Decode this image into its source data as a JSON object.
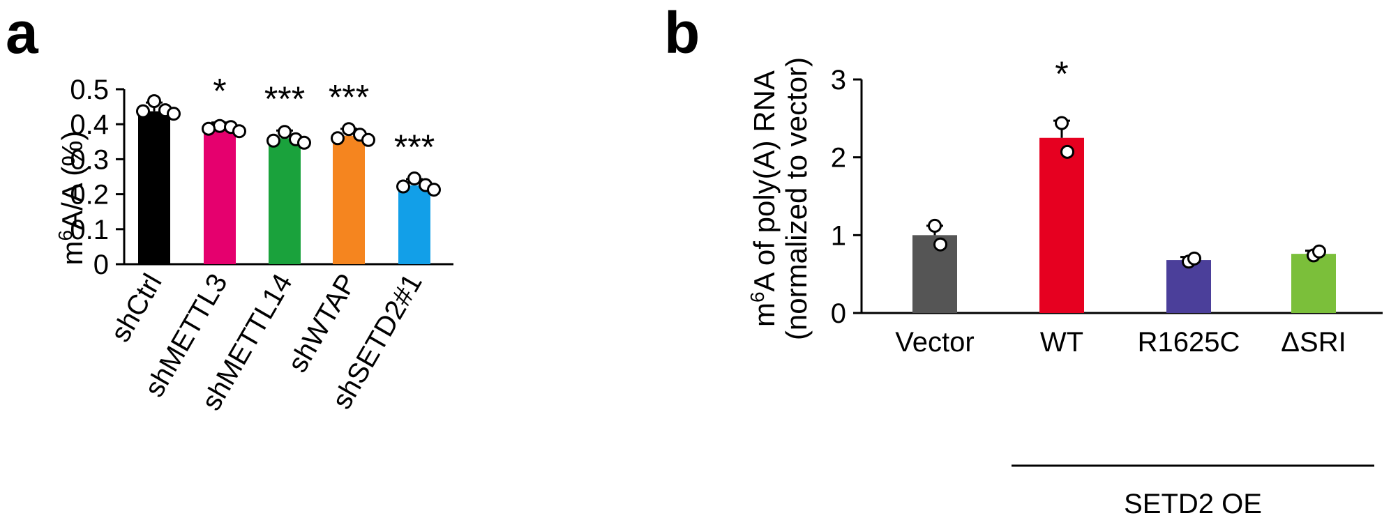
{
  "chart_data": [
    {
      "panel": "a",
      "type": "bar",
      "categories": [
        "shCtrl",
        "shMETTL3",
        "shMETTL14",
        "shWTAP",
        "shSETD2#1"
      ],
      "values": [
        0.437,
        0.39,
        0.36,
        0.367,
        0.225
      ],
      "error": [
        0.025,
        0.015,
        0.022,
        0.02,
        0.018
      ],
      "points": [
        [
          0.466,
          0.437,
          0.44,
          0.43
        ],
        [
          0.395,
          0.387,
          0.392,
          0.38
        ],
        [
          0.378,
          0.353,
          0.357,
          0.347
        ],
        [
          0.386,
          0.36,
          0.37,
          0.355
        ],
        [
          0.245,
          0.222,
          0.226,
          0.213
        ]
      ],
      "significance": [
        "",
        "*",
        "***",
        "***",
        "***"
      ],
      "colors": [
        "#000000",
        "#e5006e",
        "#1aa23c",
        "#f5851f",
        "#129fe8"
      ],
      "ylabel_base": "m",
      "ylabel_sup": "6",
      "ylabel_rest": "A/A (%)",
      "yticks": [
        "0",
        "0.1",
        "0.2",
        "0.3",
        "0.4",
        "0.5"
      ],
      "ylim": [
        0,
        0.5
      ]
    },
    {
      "panel": "b",
      "type": "bar",
      "categories": [
        "Vector",
        "WT",
        "R1625C",
        "ΔSRI"
      ],
      "values": [
        1.0,
        2.25,
        0.68,
        0.76
      ],
      "error": [
        0.12,
        0.22,
        0.04,
        0.04
      ],
      "points": [
        [
          1.12,
          0.88
        ],
        [
          2.44,
          2.07
        ],
        [
          0.66,
          0.7
        ],
        [
          0.74,
          0.79
        ]
      ],
      "significance": [
        "",
        "*",
        "",
        ""
      ],
      "colors": [
        "#555555",
        "#e60020",
        "#4b3f9a",
        "#7bbf3a"
      ],
      "ylabel_base": "m",
      "ylabel_sup": "6",
      "ylabel_rest": "A of poly(A) RNA",
      "ylabel_line2": "(normalized to vector)",
      "yticks": [
        "0",
        "1",
        "2",
        "3"
      ],
      "ylim": [
        0,
        3
      ],
      "group_label": "SETD2 OE"
    }
  ]
}
